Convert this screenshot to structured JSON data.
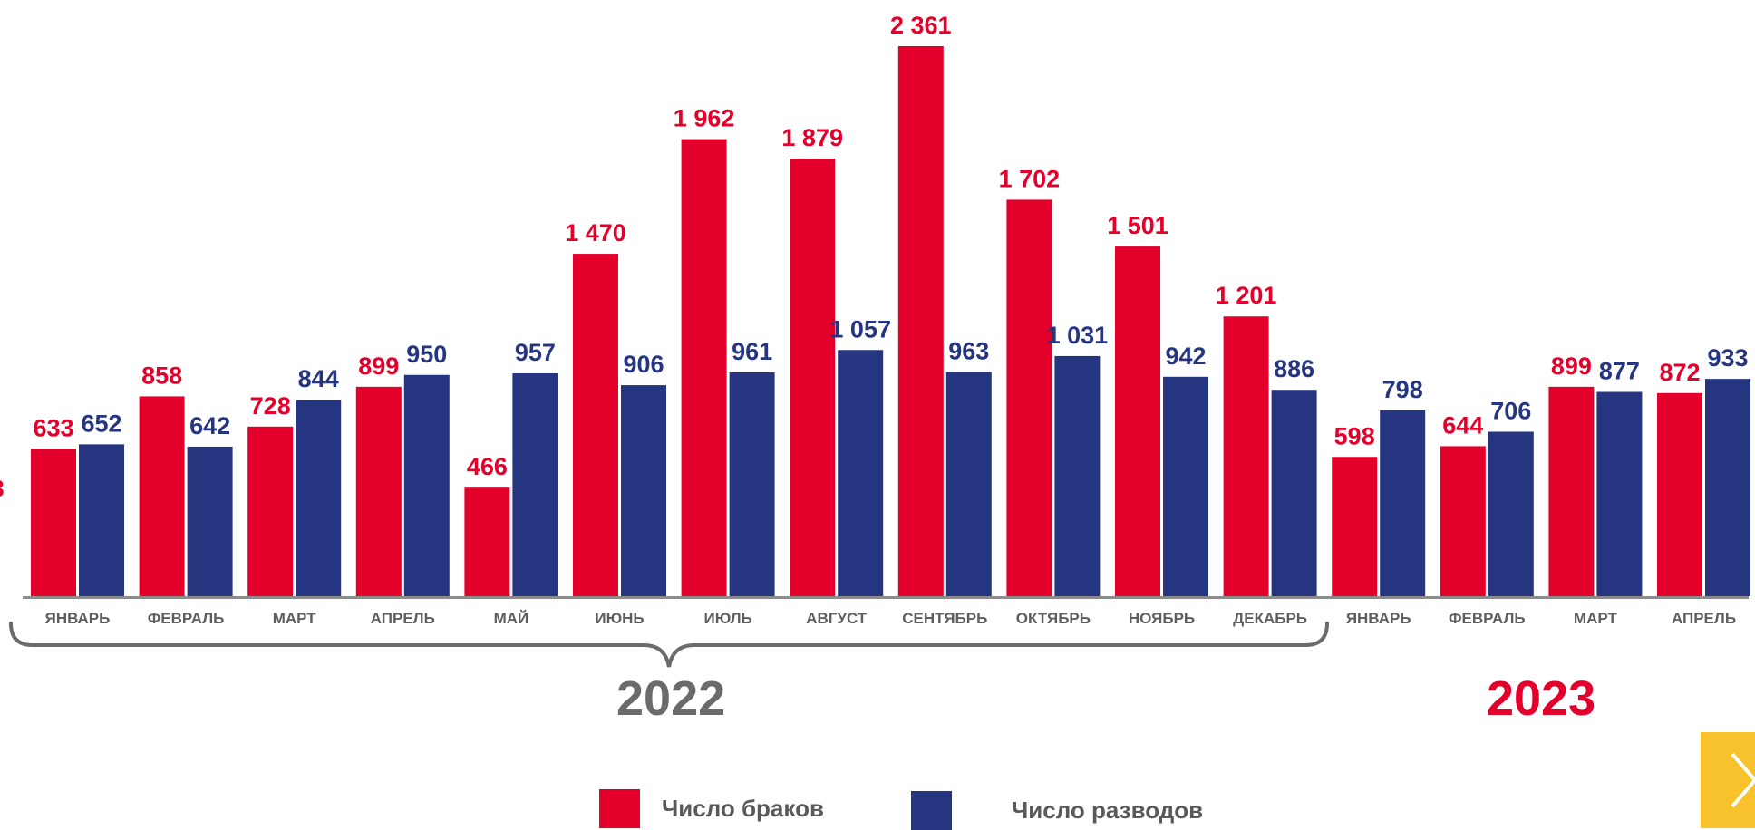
{
  "chart_data": {
    "type": "bar",
    "categories": [
      "ЯНВАРЬ",
      "ФЕВРАЛЬ",
      "МАРТ",
      "АПРЕЛЬ",
      "МАЙ",
      "ИЮНЬ",
      "ИЮЛЬ",
      "АВГУСТ",
      "СЕНТЯБРЬ",
      "ОКТЯБРЬ",
      "НОЯБРЬ",
      "ДЕКАБРЬ",
      "ЯНВАРЬ",
      "ФЕВРАЛЬ",
      "МАРТ",
      "АПРЕЛЬ"
    ],
    "series": [
      {
        "name": "Число браков",
        "color": "#e3002b",
        "values": [
          633,
          858,
          728,
          899,
          466,
          1470,
          1962,
          1879,
          2361,
          1702,
          1501,
          1201,
          598,
          644,
          899,
          872
        ],
        "labels": [
          "633",
          "858",
          "728",
          "899",
          "466",
          "1 470",
          "1 962",
          "1 879",
          "2 361",
          "1 702",
          "1 501",
          "1 201",
          "598",
          "644",
          "899",
          "872"
        ]
      },
      {
        "name": "Число разводов",
        "color": "#263580",
        "values": [
          652,
          642,
          844,
          950,
          957,
          906,
          961,
          1057,
          963,
          1031,
          942,
          886,
          798,
          706,
          877,
          933
        ],
        "labels": [
          "652",
          "642",
          "844",
          "950",
          "957",
          "906",
          "961",
          "1 057",
          "963",
          "1 031",
          "942",
          "886",
          "798",
          "706",
          "877",
          "933"
        ]
      }
    ],
    "ylim": [
      0,
      2361
    ],
    "grid": false,
    "year_groups": [
      {
        "label": "2022",
        "from_index": 0,
        "to_index": 11,
        "color": "#6b6b6b"
      },
      {
        "label": "2023",
        "from_index": 12,
        "to_index": 15,
        "color": "#e3002b"
      }
    ],
    "legend": {
      "position": "bottom"
    }
  },
  "edge_label_fragment": "8",
  "legend": {
    "marriages_label": "Число браков",
    "divorces_label": "Число разводов"
  },
  "years": {
    "y2022": "2022",
    "y2023": "2023"
  },
  "colors": {
    "marriages": "#e3002b",
    "divorces": "#263580",
    "axis": "#8c8c8c",
    "brace": "#6b6b6b",
    "nav_button": "#f7c22c"
  },
  "nav": {
    "next_icon": "chevron-right-icon"
  }
}
